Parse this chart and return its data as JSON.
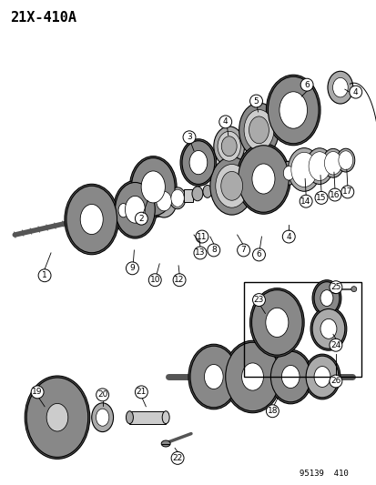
{
  "title_code": "21X-410A",
  "footer_code": "95139  410",
  "bg_color": "#ffffff",
  "lc": "#000000",
  "gray_dark": "#555555",
  "gray_mid": "#888888",
  "gray_light": "#aaaaaa",
  "gray_vlight": "#cccccc",
  "fig_width": 4.14,
  "fig_height": 5.33,
  "dpi": 100
}
